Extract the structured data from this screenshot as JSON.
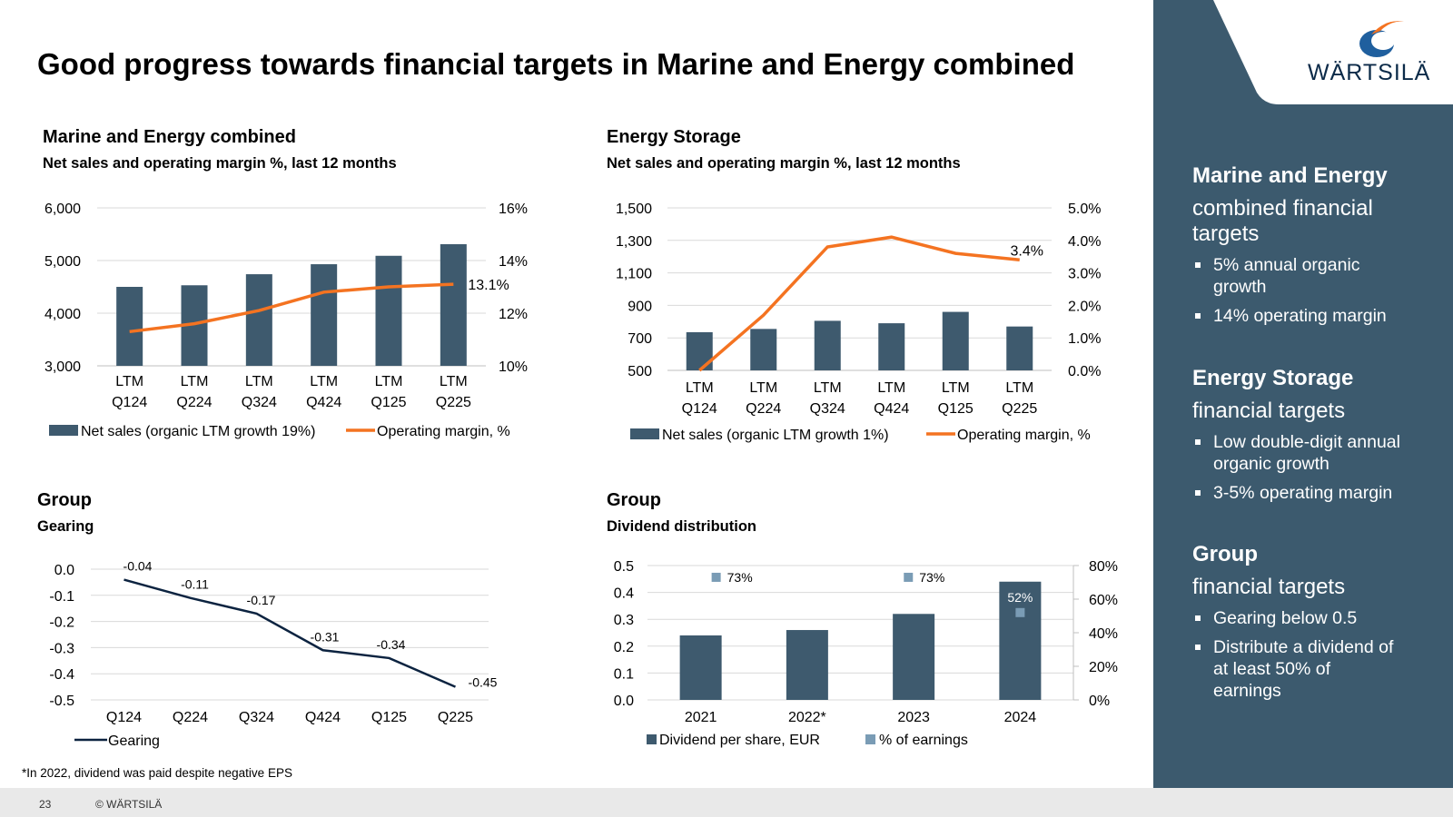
{
  "title": "Good progress towards financial targets in Marine and Energy combined",
  "logo": {
    "text": "WÄRTSILÄ"
  },
  "sidebar": {
    "sections": [
      {
        "heading": "Marine and Energy",
        "subheading": "combined financial targets",
        "items": [
          "5% annual organic growth",
          "14% operating margin"
        ]
      },
      {
        "heading": "Energy Storage",
        "subheading": "financial targets",
        "items": [
          "Low double-digit annual organic growth",
          "3-5% operating margin"
        ]
      },
      {
        "heading": "Group",
        "subheading": "financial targets",
        "items": [
          "Gearing below 0.5",
          "Distribute a dividend of at least 50% of earnings"
        ]
      }
    ]
  },
  "footer": {
    "footnote": "*In 2022, dividend was paid despite negative EPS",
    "page": "23",
    "copyright": "© WÄRTSILÄ"
  },
  "colors": {
    "bar": "#3e5a6e",
    "line": "#f47321",
    "gearing": "#0c2340",
    "marker": "#7a9cb5",
    "sidebar": "#3c5a6e"
  },
  "chart_data": [
    {
      "id": "marine_energy",
      "type": "bar",
      "heading": "Marine and Energy combined",
      "title": "Net sales and operating margin %, last 12 months",
      "categories": [
        [
          "LTM",
          "Q124"
        ],
        [
          "LTM",
          "Q224"
        ],
        [
          "LTM",
          "Q324"
        ],
        [
          "LTM",
          "Q424"
        ],
        [
          "LTM",
          "Q125"
        ],
        [
          "LTM",
          "Q225"
        ]
      ],
      "series": [
        {
          "name": "Net sales (organic LTM growth 19%)",
          "type": "bar",
          "values": [
            4500,
            4530,
            4740,
            4930,
            5090,
            5310
          ]
        },
        {
          "name": "Operating margin, %",
          "type": "line",
          "values": [
            11.3,
            11.6,
            12.1,
            12.8,
            13.0,
            13.1
          ]
        }
      ],
      "y_left": {
        "min": 3000,
        "max": 6000,
        "ticks": [
          "6,000",
          "5,000",
          "4,000",
          "3,000"
        ]
      },
      "y_right": {
        "min": 10,
        "max": 16,
        "ticks": [
          "16%",
          "14%",
          "12%",
          "10%"
        ]
      },
      "annotation": "13.1%"
    },
    {
      "id": "energy_storage",
      "type": "bar",
      "heading": "Energy Storage",
      "title": "Net sales and operating margin %, last 12 months",
      "categories": [
        [
          "LTM",
          "Q124"
        ],
        [
          "LTM",
          "Q224"
        ],
        [
          "LTM",
          "Q324"
        ],
        [
          "LTM",
          "Q424"
        ],
        [
          "LTM",
          "Q125"
        ],
        [
          "LTM",
          "Q225"
        ]
      ],
      "series": [
        {
          "name": "Net sales (organic LTM growth 1%)",
          "type": "bar",
          "values": [
            735,
            755,
            805,
            790,
            860,
            770
          ]
        },
        {
          "name": "Operating margin, %",
          "type": "line",
          "values": [
            0.0,
            1.7,
            3.8,
            4.1,
            3.6,
            3.4
          ]
        }
      ],
      "y_left": {
        "min": 500,
        "max": 1500,
        "ticks": [
          "1,500",
          "1,300",
          "1,100",
          "900",
          "700",
          "500"
        ]
      },
      "y_right": {
        "min": 0,
        "max": 5,
        "ticks": [
          "5.0%",
          "4.0%",
          "3.0%",
          "2.0%",
          "1.0%",
          "0.0%"
        ]
      },
      "annotation": "3.4%"
    },
    {
      "id": "gearing",
      "type": "line",
      "heading": "Group",
      "title": "Gearing",
      "categories": [
        "Q124",
        "Q224",
        "Q324",
        "Q424",
        "Q125",
        "Q225"
      ],
      "series": [
        {
          "name": "Gearing",
          "values": [
            -0.04,
            -0.11,
            -0.17,
            -0.31,
            -0.34,
            -0.45
          ]
        }
      ],
      "data_labels": [
        "-0.04",
        "-0.11",
        "-0.17",
        "-0.31",
        "-0.34",
        "-0.45"
      ],
      "y": {
        "min": -0.5,
        "max": 0,
        "ticks": [
          "0.0",
          "-0.1",
          "-0.2",
          "-0.3",
          "-0.4",
          "-0.5"
        ]
      }
    },
    {
      "id": "dividend",
      "type": "bar",
      "heading": "Group",
      "title": "Dividend distribution",
      "categories": [
        "2021",
        "2022*",
        "2023",
        "2024"
      ],
      "series": [
        {
          "name": "Dividend per share, EUR",
          "type": "bar",
          "values": [
            0.24,
            0.26,
            0.32,
            0.44
          ]
        },
        {
          "name": "% of earnings",
          "type": "marker",
          "values": [
            73,
            73,
            null,
            52
          ],
          "labels": [
            "73%",
            "73%",
            "",
            "52%"
          ]
        }
      ],
      "y_left": {
        "min": 0,
        "max": 0.5,
        "ticks": [
          "0.5",
          "0.4",
          "0.3",
          "0.2",
          "0.1",
          "0.0"
        ]
      },
      "y_right": {
        "min": 0,
        "max": 80,
        "ticks": [
          "80%",
          "60%",
          "40%",
          "20%",
          "0%"
        ]
      }
    }
  ]
}
